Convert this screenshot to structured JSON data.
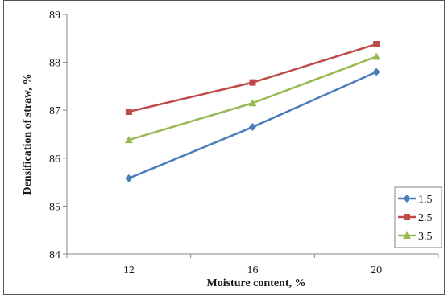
{
  "chart_data": {
    "type": "line",
    "title": "",
    "xlabel": "Moisture content, %",
    "ylabel": "Densification of  straw, %",
    "categories": [
      "12",
      "16",
      "20"
    ],
    "ylim": [
      84,
      89
    ],
    "yticks": [
      "84",
      "85",
      "86",
      "87",
      "88",
      "89"
    ],
    "grid": false,
    "legend_position": "bottom-right",
    "series": [
      {
        "name": "1.5",
        "values": [
          85.58,
          86.65,
          87.8
        ],
        "color": "#4a7ebb",
        "marker": "diamond"
      },
      {
        "name": "2.5",
        "values": [
          86.97,
          87.58,
          88.38
        ],
        "color": "#be4b48",
        "marker": "square"
      },
      {
        "name": "3.5",
        "values": [
          86.38,
          87.15,
          88.12
        ],
        "color": "#98b954",
        "marker": "triangle"
      }
    ]
  }
}
